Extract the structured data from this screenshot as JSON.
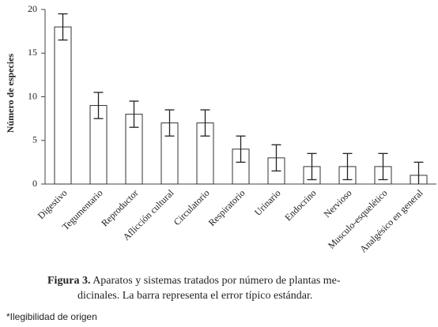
{
  "chart_data": {
    "type": "bar",
    "y_label": "Número de especies",
    "categories": [
      "Digestivo",
      "Tegumentario",
      "Reproductor",
      "Aflicción cultural",
      "Circulatorio",
      "Respiratorio",
      "Urinario",
      "Endocrino",
      "Nervioso",
      "Musculo-esquelético",
      "Analgésico en general"
    ],
    "values": [
      18,
      9,
      8,
      7,
      7,
      4,
      3,
      2,
      2,
      2,
      1
    ],
    "errors": [
      1.5,
      1.5,
      1.5,
      1.5,
      1.5,
      1.5,
      1.5,
      1.5,
      1.5,
      1.5,
      1.5
    ],
    "color": "#ffffff",
    "ylim": [
      0,
      20
    ],
    "yticks": [
      0,
      5,
      10,
      15,
      20
    ],
    "grid": false,
    "caption": {
      "label": "Figura 3.",
      "lines": [
        "Aparatos y sistemas tratados por número de plantas me-",
        "dicinales. La barra representa el error típico estándar."
      ]
    },
    "note": "*Ilegibilidad de origen"
  }
}
